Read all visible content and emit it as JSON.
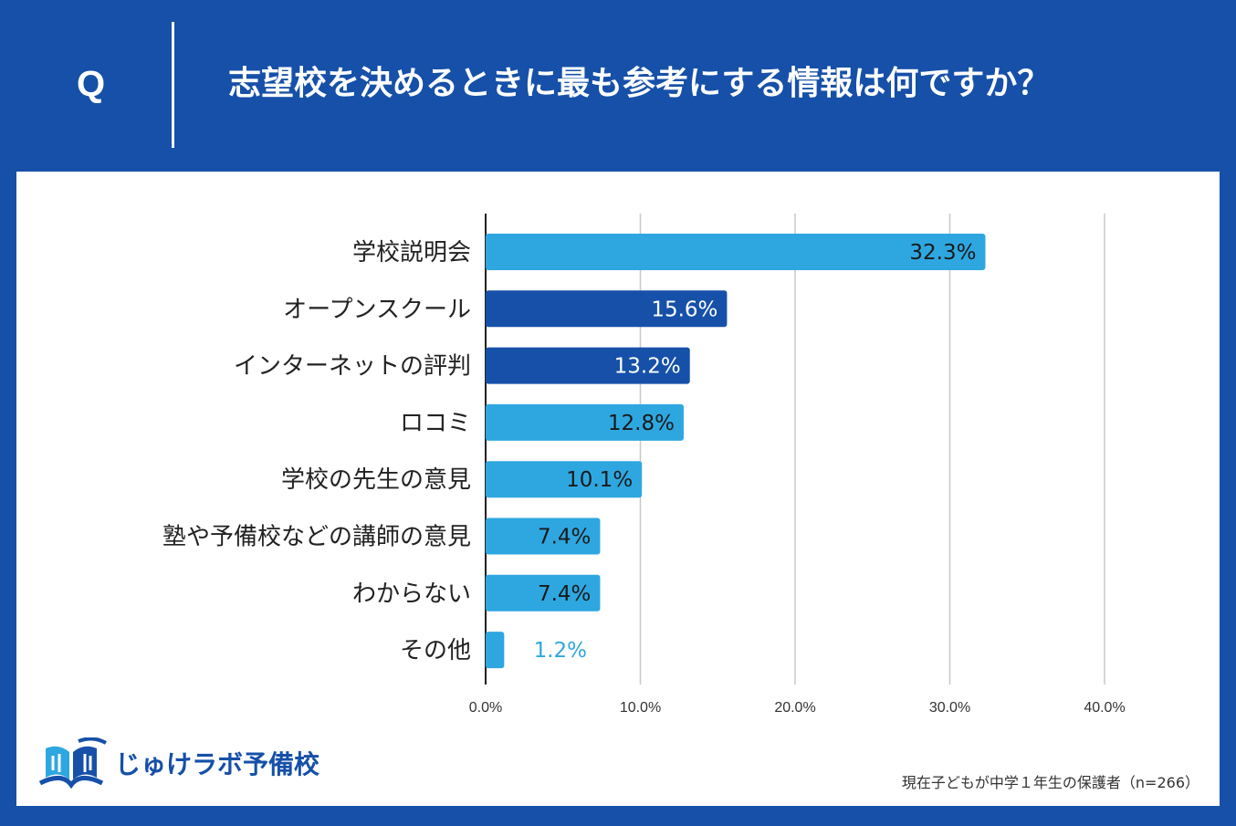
{
  "header": {
    "q_mark": "Q",
    "question": "志望校を決めるときに最も参考にする情報は何ですか？"
  },
  "colors": {
    "background": "#1650a8",
    "bar_light": "#2ea7e0",
    "bar_dark": "#1650a8",
    "panel": "#ffffff"
  },
  "chart_data": {
    "type": "bar",
    "orientation": "horizontal",
    "title": "志望校を決めるときに最も参考にする情報は何ですか？",
    "categories": [
      "学校説明会",
      "オープンスクール",
      "インターネットの評判",
      "ロコミ",
      "学校の先生の意見",
      "塾や予備校などの講師の意見",
      "わからない",
      "その他"
    ],
    "values": [
      32.3,
      15.6,
      13.2,
      12.8,
      10.1,
      7.4,
      7.4,
      1.2
    ],
    "value_labels": [
      "32.3%",
      "15.6%",
      "13.2%",
      "12.8%",
      "10.1%",
      "7.4%",
      "7.4%",
      "1.2%"
    ],
    "bar_colors": [
      "#2ea7e0",
      "#1650a8",
      "#1650a8",
      "#2ea7e0",
      "#2ea7e0",
      "#2ea7e0",
      "#2ea7e0",
      "#2ea7e0"
    ],
    "x_ticks": [
      0,
      10,
      20,
      30,
      40
    ],
    "x_tick_labels": [
      "0.0%",
      "10.0%",
      "20.0%",
      "30.0%",
      "40.0%"
    ],
    "xlim": [
      0,
      40
    ],
    "grid": true,
    "xlabel": "",
    "ylabel": ""
  },
  "logo": {
    "text": "じゅけラボ予備校"
  },
  "footnote": "現在子どもが中学１年生の保護者（n=266）"
}
